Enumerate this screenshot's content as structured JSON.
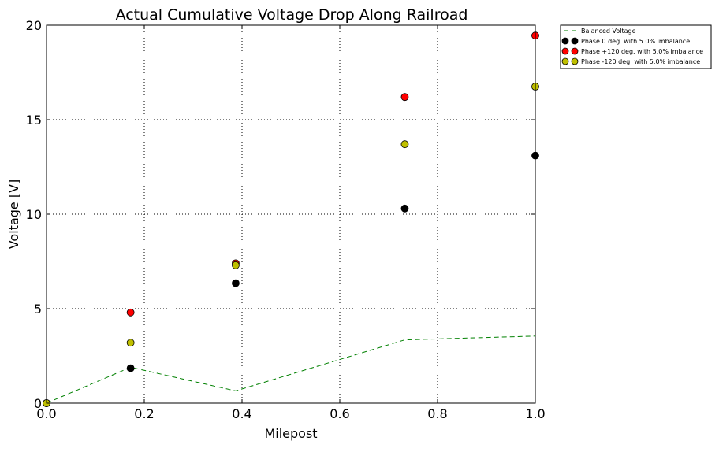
{
  "chart_data": {
    "type": "scatter",
    "title": "Actual Cumulative Voltage Drop Along Railroad",
    "xlabel": "Milepost",
    "ylabel": "Voltage [V]",
    "xlim": [
      0,
      1.0
    ],
    "ylim": [
      0,
      20
    ],
    "xticks": [
      "0.0",
      "0.2",
      "0.4",
      "0.6",
      "0.8",
      "1.0"
    ],
    "yticks": [
      "0",
      "5",
      "10",
      "15",
      "20"
    ],
    "grid": true,
    "legend_position": "outside-top-right",
    "series": [
      {
        "name": "Balanced Voltage",
        "style": "dashed-line",
        "color": "#008000",
        "x": [
          0.0,
          0.172,
          0.387,
          0.733,
          1.0
        ],
        "y": [
          0.0,
          1.9,
          0.65,
          3.35,
          3.55
        ]
      },
      {
        "name": "Phase 0 deg. with 5.0% imbalance",
        "style": "marker",
        "color": "#000000",
        "x": [
          0.0,
          0.172,
          0.387,
          0.733,
          1.0
        ],
        "y": [
          0.0,
          1.85,
          6.35,
          10.3,
          13.1
        ]
      },
      {
        "name": "Phase +120 deg. with 5.0% imbalance",
        "style": "marker",
        "color": "#ff0000",
        "x": [
          0.0,
          0.172,
          0.387,
          0.733,
          1.0
        ],
        "y": [
          0.0,
          4.8,
          7.4,
          16.2,
          19.45
        ]
      },
      {
        "name": "Phase -120 deg. with 5.0% imbalance",
        "style": "marker",
        "color": "#bfbf00",
        "x": [
          0.0,
          0.172,
          0.387,
          0.733,
          1.0
        ],
        "y": [
          0.0,
          3.2,
          7.3,
          13.7,
          16.75
        ]
      }
    ]
  }
}
